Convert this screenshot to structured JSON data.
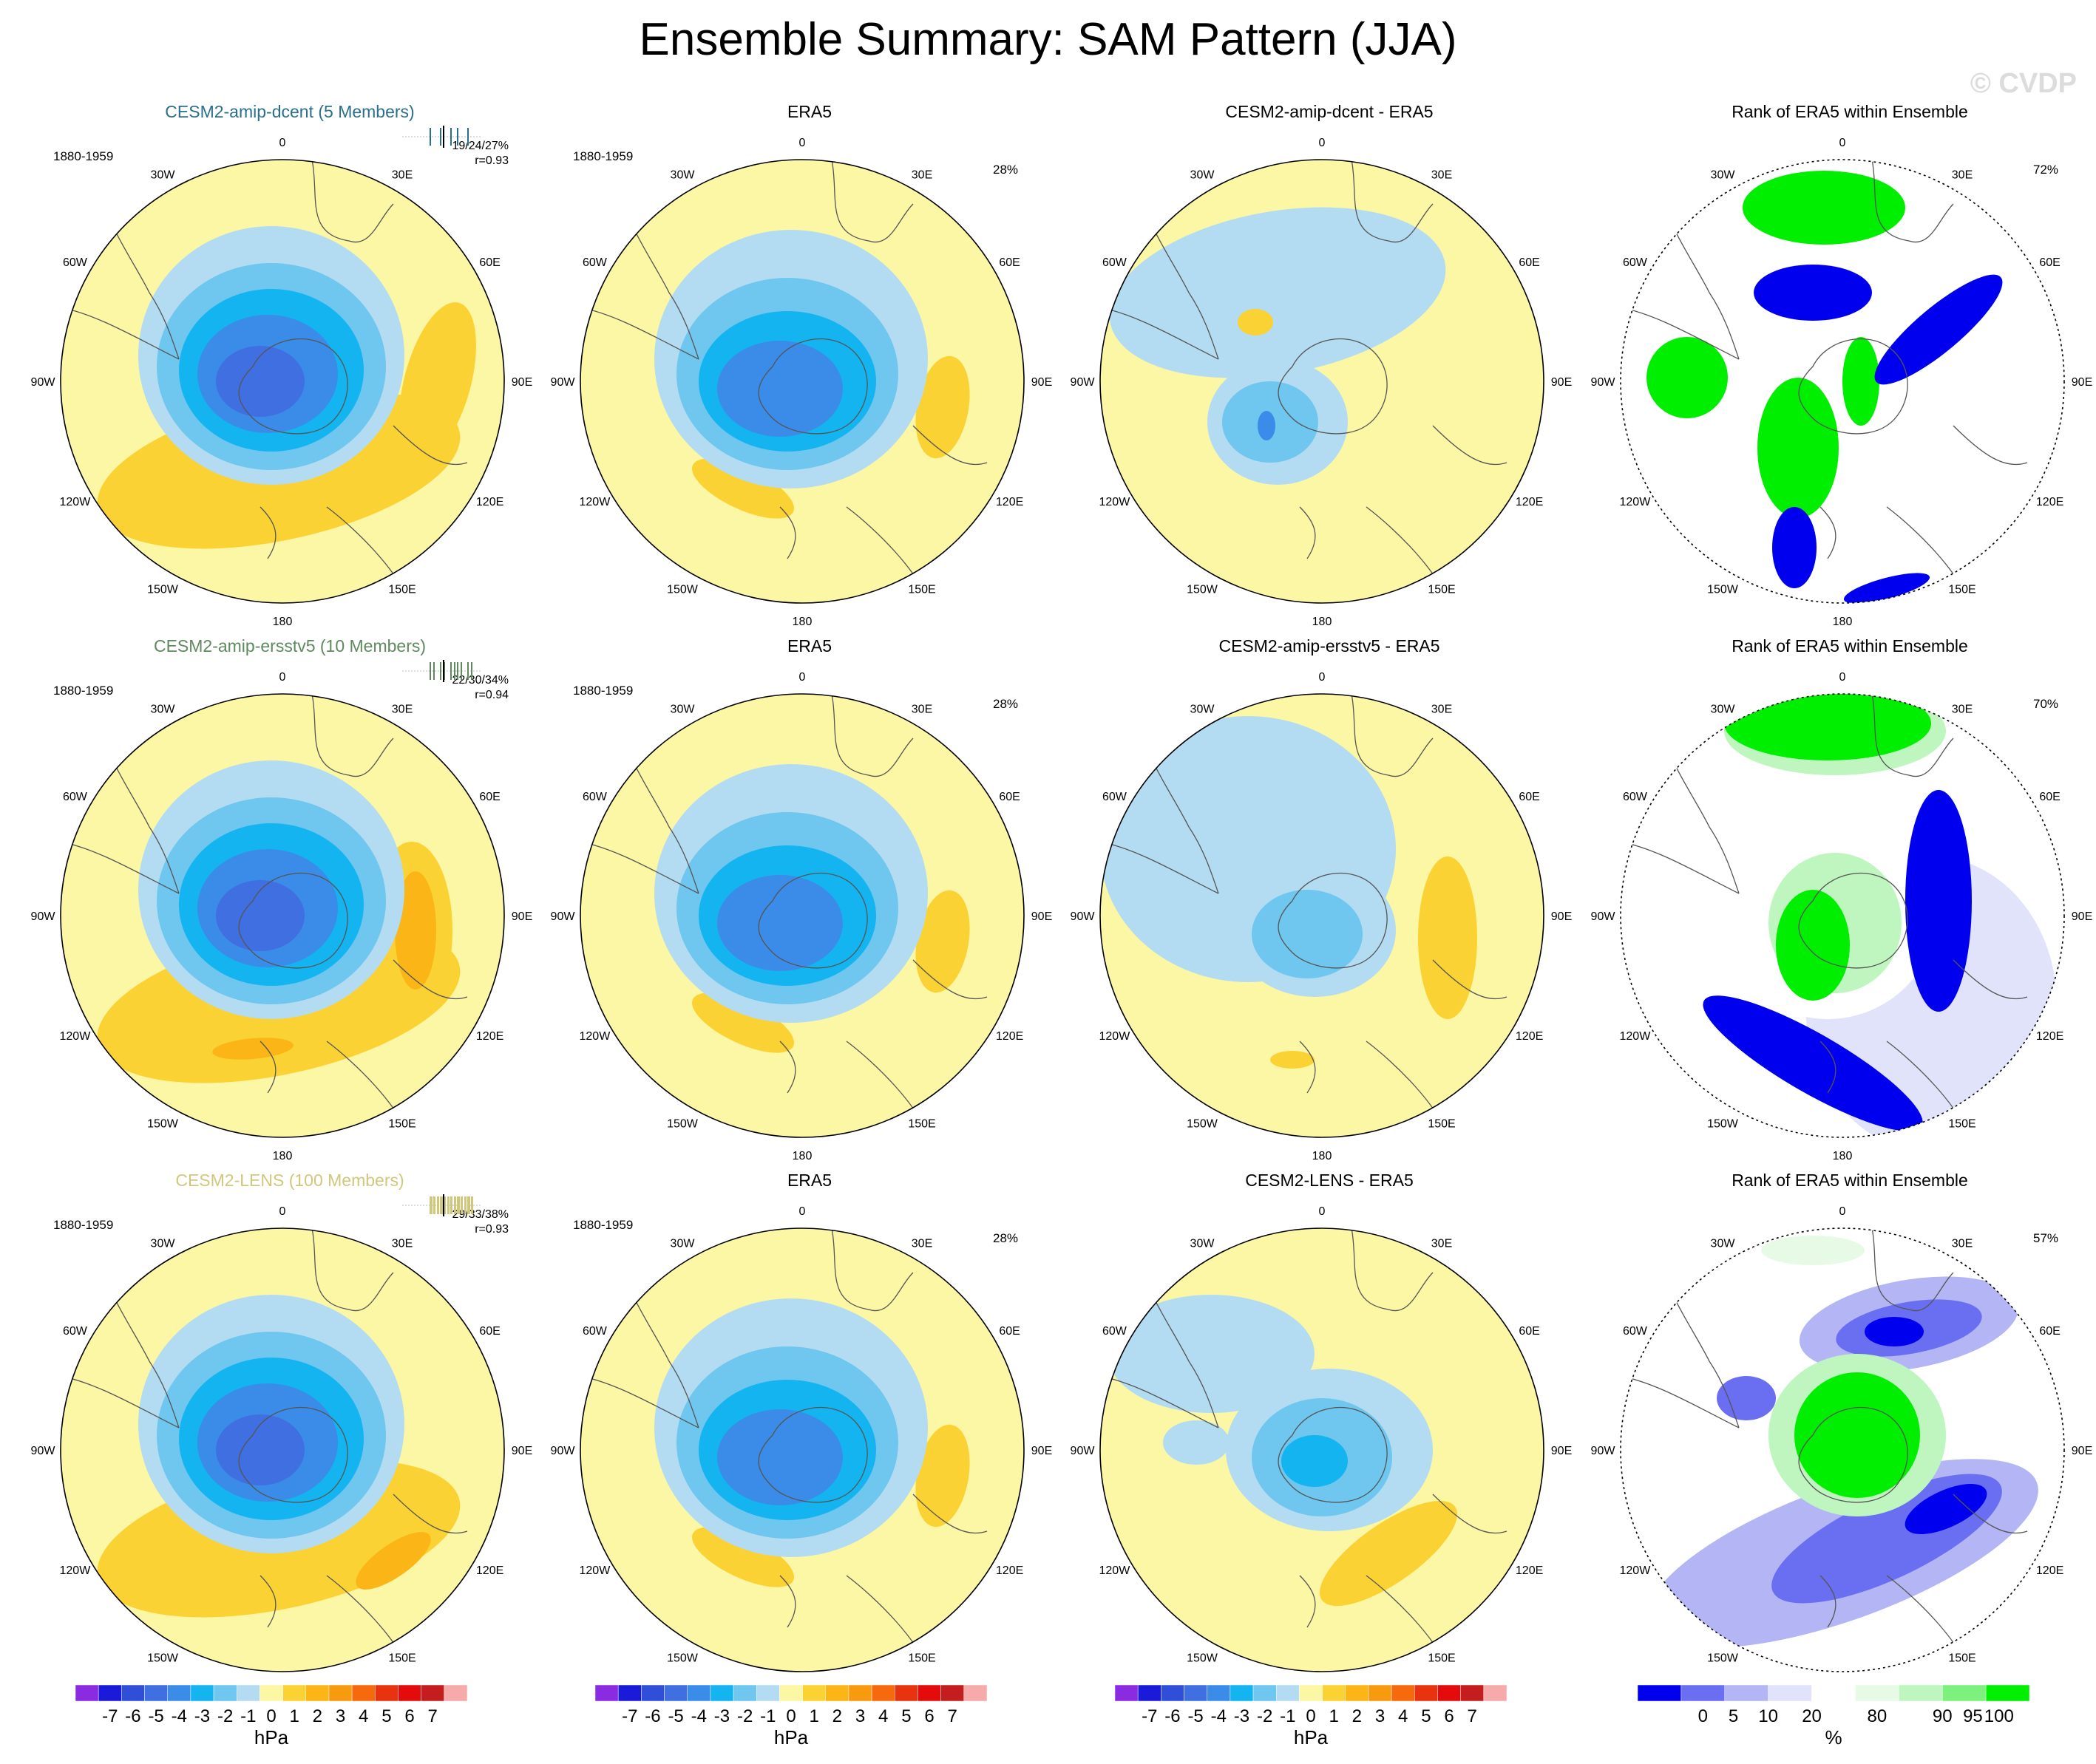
{
  "title": "Ensemble Summary: SAM Pattern (JJA)",
  "credit": "© CVDP",
  "lon_labels": {
    "0": "0",
    "30E": "30E",
    "60E": "60E",
    "90E": "90E",
    "120E": "120E",
    "150E": "150E",
    "180": "180",
    "150W": "150W",
    "120W": "120W",
    "90W": "90W",
    "60W": "60W",
    "30W": "30W"
  },
  "rows": [
    {
      "ensemble": {
        "title": "CESM2-amip-dcent (5 Members)",
        "color": "#2a6f8e",
        "period": "1880-1959",
        "stats1": "19/24/27%",
        "stats2": "r=0.93"
      },
      "obs": {
        "title": "ERA5",
        "period": "1880-1959",
        "pct": "28%"
      },
      "diff": {
        "title": "CESM2-amip-dcent - ERA5"
      },
      "rank": {
        "title": "Rank of ERA5 within Ensemble",
        "pct": "72%"
      }
    },
    {
      "ensemble": {
        "title": "CESM2-amip-ersstv5 (10 Members)",
        "color": "#5e8a5e",
        "period": "1880-1959",
        "stats1": "22/30/34%",
        "stats2": "r=0.94"
      },
      "obs": {
        "title": "ERA5",
        "period": "1880-1959",
        "pct": "28%"
      },
      "diff": {
        "title": "CESM2-amip-ersstv5 - ERA5"
      },
      "rank": {
        "title": "Rank of ERA5 within Ensemble",
        "pct": "70%"
      }
    },
    {
      "ensemble": {
        "title": "CESM2-LENS (100 Members)",
        "color": "#d1c77c",
        "period": "1880-1959",
        "stats1": "29/33/38%",
        "stats2": "r=0.93"
      },
      "obs": {
        "title": "ERA5",
        "period": "1880-1959",
        "pct": "28%"
      },
      "diff": {
        "title": "CESM2-LENS - ERA5"
      },
      "rank": {
        "title": "Rank of ERA5 within Ensemble",
        "pct": "57%"
      }
    }
  ],
  "colorbars": {
    "hpa": {
      "unit": "hPa",
      "labels": [
        "-7",
        "-6",
        "-5",
        "-4",
        "-3",
        "-2",
        "-1",
        "0",
        "1",
        "2",
        "3",
        "4",
        "5",
        "6",
        "7"
      ],
      "colors": [
        "#8a2be2",
        "#1a1ad9",
        "#2f4fd8",
        "#3f6fe0",
        "#3a8ce8",
        "#14b4f0",
        "#6fc6ee",
        "#b3dcf2",
        "#fbf7a4",
        "#fbd233",
        "#fbb516",
        "#f89a10",
        "#f66a0d",
        "#e83310",
        "#e30b0b",
        "#c41d1d",
        "#f6aaaa"
      ]
    },
    "rank": {
      "unit": "%",
      "labels": [
        "0",
        "5",
        "10",
        "20",
        "80",
        "90",
        "95",
        "100"
      ],
      "colors": [
        "#0000ee",
        "#6a6ef0",
        "#b3b5f4",
        "#e1e3fa",
        "#ffffff",
        "#e6fae6",
        "#bff5bf",
        "#7df07d",
        "#00ee00"
      ]
    }
  }
}
